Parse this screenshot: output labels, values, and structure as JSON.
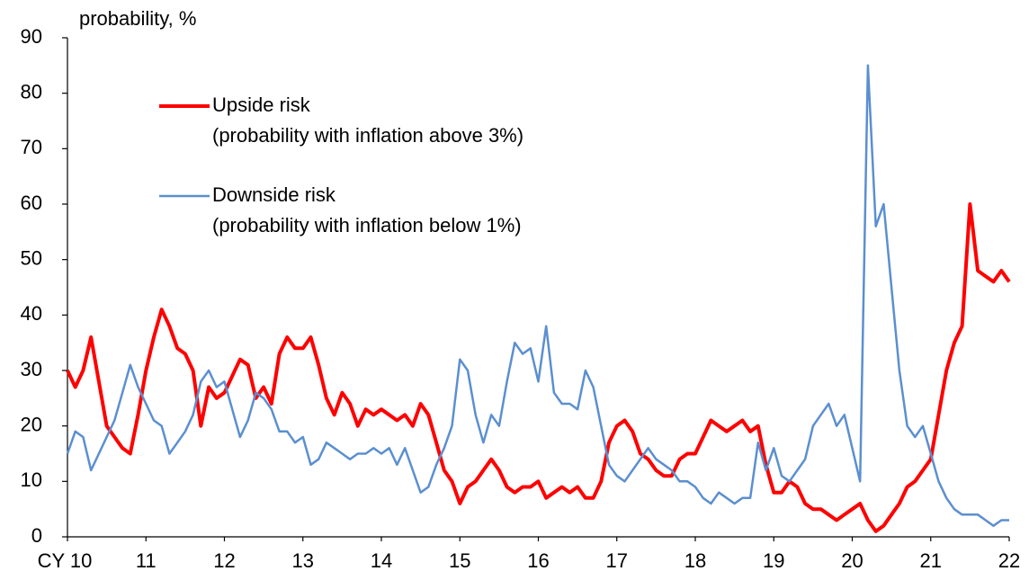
{
  "chart_data": {
    "type": "line",
    "y_label": "probability, %",
    "x": [
      10,
      10.1,
      10.2,
      10.3,
      10.4,
      10.5,
      10.6,
      10.7,
      10.8,
      10.9,
      11,
      11.1,
      11.2,
      11.3,
      11.4,
      11.5,
      11.6,
      11.7,
      11.8,
      11.9,
      12,
      12.1,
      12.2,
      12.3,
      12.4,
      12.5,
      12.6,
      12.7,
      12.8,
      12.9,
      13,
      13.1,
      13.2,
      13.3,
      13.4,
      13.5,
      13.6,
      13.7,
      13.8,
      13.9,
      14,
      14.1,
      14.2,
      14.3,
      14.4,
      14.5,
      14.6,
      14.7,
      14.8,
      14.9,
      15,
      15.1,
      15.2,
      15.3,
      15.4,
      15.5,
      15.6,
      15.7,
      15.8,
      15.9,
      16,
      16.1,
      16.2,
      16.3,
      16.4,
      16.5,
      16.6,
      16.7,
      16.8,
      16.9,
      17,
      17.1,
      17.2,
      17.3,
      17.4,
      17.5,
      17.6,
      17.7,
      17.8,
      17.9,
      18,
      18.1,
      18.2,
      18.3,
      18.4,
      18.5,
      18.6,
      18.7,
      18.8,
      18.9,
      19,
      19.1,
      19.2,
      19.3,
      19.4,
      19.5,
      19.6,
      19.7,
      19.8,
      19.9,
      20,
      20.1,
      20.2,
      20.3,
      20.4,
      20.5,
      20.6,
      20.7,
      20.8,
      20.9,
      21,
      21.1,
      21.2,
      21.3,
      21.4,
      21.5,
      21.6,
      21.7,
      21.8,
      21.9,
      22
    ],
    "series": [
      {
        "name": "Upside risk",
        "note": "(probability with inflation above 3%)",
        "color": "#ff0000",
        "width": 4,
        "values": [
          30,
          27,
          30,
          36,
          28,
          20,
          18,
          16,
          15,
          22,
          30,
          36,
          41,
          38,
          34,
          33,
          30,
          20,
          27,
          25,
          26,
          29,
          32,
          31,
          25,
          27,
          24,
          33,
          36,
          34,
          34,
          36,
          31,
          25,
          22,
          26,
          24,
          20,
          23,
          22,
          23,
          22,
          21,
          22,
          20,
          24,
          22,
          17,
          12,
          10,
          6,
          9,
          10,
          12,
          14,
          12,
          9,
          8,
          9,
          9,
          10,
          7,
          8,
          9,
          8,
          9,
          7,
          7,
          10,
          17,
          20,
          21,
          19,
          15,
          14,
          12,
          11,
          11,
          14,
          15,
          15,
          18,
          21,
          20,
          19,
          20,
          21,
          19,
          20,
          13,
          8,
          8,
          10,
          9,
          6,
          5,
          5,
          4,
          3,
          4,
          5,
          6,
          3,
          1,
          2,
          4,
          6,
          9,
          10,
          12,
          14,
          22,
          30,
          35,
          38,
          60,
          48,
          47,
          46,
          48,
          46
        ]
      },
      {
        "name": "Downside risk",
        "note": "(probability with inflation below 1%)",
        "color": "#5b8fd0",
        "width": 2.5,
        "values": [
          15,
          19,
          18,
          12,
          15,
          18,
          21,
          26,
          31,
          27,
          24,
          21,
          20,
          15,
          17,
          19,
          22,
          28,
          30,
          27,
          28,
          23,
          18,
          21,
          26,
          25,
          23,
          19,
          19,
          17,
          18,
          13,
          14,
          17,
          16,
          15,
          14,
          15,
          15,
          16,
          15,
          16,
          13,
          16,
          12,
          8,
          9,
          13,
          16,
          20,
          32,
          30,
          22,
          17,
          22,
          20,
          28,
          35,
          33,
          34,
          28,
          38,
          26,
          24,
          24,
          23,
          30,
          27,
          20,
          13,
          11,
          10,
          12,
          14,
          16,
          14,
          13,
          12,
          10,
          10,
          9,
          7,
          6,
          8,
          7,
          6,
          7,
          7,
          17,
          12,
          16,
          11,
          10,
          12,
          14,
          20,
          22,
          24,
          20,
          22,
          16,
          10,
          85,
          56,
          60,
          45,
          30,
          20,
          18,
          20,
          15,
          10,
          7,
          5,
          4,
          4,
          4,
          3,
          2,
          3,
          3
        ]
      }
    ],
    "xlim": [
      10,
      22
    ],
    "xticks": [
      {
        "value": 10,
        "label": "CY 10"
      },
      11,
      12,
      13,
      14,
      15,
      16,
      17,
      18,
      19,
      20,
      21,
      22
    ],
    "ylim": [
      0,
      90
    ],
    "yticks": [
      0,
      10,
      20,
      30,
      40,
      50,
      60,
      70,
      80,
      90
    ]
  }
}
